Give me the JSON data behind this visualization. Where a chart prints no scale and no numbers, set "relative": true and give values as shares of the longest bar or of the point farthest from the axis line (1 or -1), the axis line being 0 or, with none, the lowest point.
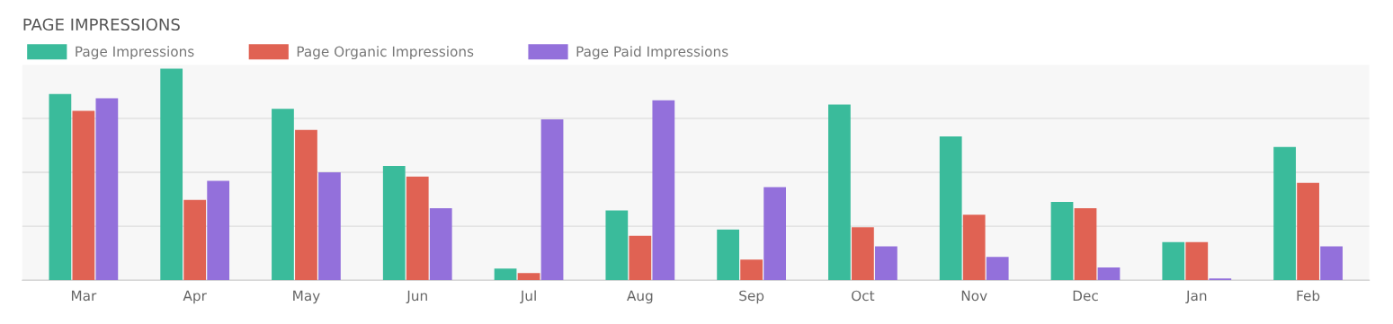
{
  "chart_data": {
    "type": "bar",
    "title": "PAGE IMPRESSIONS",
    "relative": true,
    "grid": "y",
    "legend": "top left",
    "categories": [
      "Mar",
      "Apr",
      "May",
      "Jun",
      "Jul",
      "Aug",
      "Sep",
      "Oct",
      "Nov",
      "Dec",
      "Jan",
      "Feb"
    ],
    "series": [
      {
        "name": "Page Impressions",
        "color": "#3abb9b",
        "values": [
          0.88,
          1,
          0.81,
          0.54,
          0.055,
          0.33,
          0.24,
          0.83,
          0.68,
          0.37,
          0.18,
          0.63
        ]
      },
      {
        "name": "Page Organic Impressions",
        "color": "#e06253",
        "values": [
          0.8,
          0.38,
          0.71,
          0.49,
          0.034,
          0.21,
          0.098,
          0.25,
          0.31,
          0.34,
          0.18,
          0.46
        ]
      },
      {
        "name": "Page Paid Impressions",
        "color": "#9370db",
        "values": [
          0.86,
          0.47,
          0.51,
          0.34,
          0.76,
          0.85,
          0.44,
          0.16,
          0.11,
          0.06,
          0.009,
          0.16
        ]
      }
    ]
  }
}
